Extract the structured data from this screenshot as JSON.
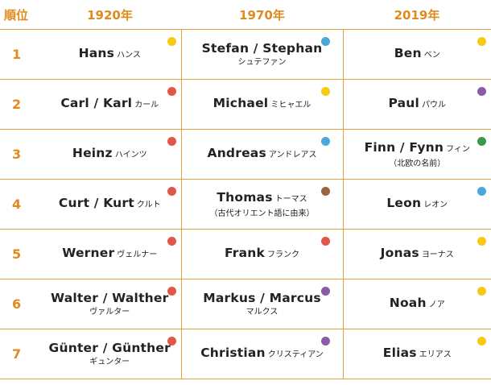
{
  "colors": {
    "accent": "#e08a1e",
    "dot_yellow": "#f6c913",
    "dot_blue": "#4aa8dc",
    "dot_red": "#e0574a",
    "dot_purple": "#8b5aa8",
    "dot_green": "#3a9a4a",
    "dot_brown": "#9a6440"
  },
  "header": {
    "rank": "順位",
    "col1": "1920年",
    "col2": "1970年",
    "col3": "2019年"
  },
  "rows": [
    {
      "rank": "1",
      "c1": {
        "name": "Hans",
        "kana": "ハンス",
        "kana_sub": "",
        "dot": "#f6c913"
      },
      "c2": {
        "name": "Stefan / Stephan",
        "kana": "",
        "kana_sub": "シュテファン",
        "dot": "#4aa8dc"
      },
      "c3": {
        "name": "Ben",
        "kana": "ベン",
        "kana_sub": "",
        "dot": "#f6c913"
      }
    },
    {
      "rank": "2",
      "c1": {
        "name": "Carl / Karl",
        "kana": "カール",
        "kana_sub": "",
        "dot": "#e0574a"
      },
      "c2": {
        "name": "Michael",
        "kana": "ミヒャエル",
        "kana_sub": "",
        "dot": "#f6c913"
      },
      "c3": {
        "name": "Paul",
        "kana": "パウル",
        "kana_sub": "",
        "dot": "#8b5aa8"
      }
    },
    {
      "rank": "3",
      "c1": {
        "name": "Heinz",
        "kana": "ハインツ",
        "kana_sub": "",
        "dot": "#e0574a"
      },
      "c2": {
        "name": "Andreas",
        "kana": "アンドレアス",
        "kana_sub": "",
        "dot": "#4aa8dc"
      },
      "c3": {
        "name": "Finn / Fynn",
        "kana": "フィン",
        "kana_sub": "（北欧の名前）",
        "dot": "#3a9a4a"
      }
    },
    {
      "rank": "4",
      "c1": {
        "name": "Curt / Kurt",
        "kana": "クルト",
        "kana_sub": "",
        "dot": "#e0574a"
      },
      "c2": {
        "name": "Thomas",
        "kana": "トーマス",
        "kana_sub": "（古代オリエント語に由来）",
        "dot": "#9a6440"
      },
      "c3": {
        "name": "Leon",
        "kana": "レオン",
        "kana_sub": "",
        "dot": "#4aa8dc"
      }
    },
    {
      "rank": "5",
      "c1": {
        "name": "Werner",
        "kana": "ヴェルナー",
        "kana_sub": "",
        "dot": "#e0574a"
      },
      "c2": {
        "name": "Frank",
        "kana": "フランク",
        "kana_sub": "",
        "dot": "#e0574a"
      },
      "c3": {
        "name": "Jonas",
        "kana": "ヨーナス",
        "kana_sub": "",
        "dot": "#f6c913"
      }
    },
    {
      "rank": "6",
      "c1": {
        "name": "Walter / Walther",
        "kana": "",
        "kana_sub": "ヴァルター",
        "dot": "#e0574a"
      },
      "c2": {
        "name": "Markus / Marcus",
        "kana": "",
        "kana_sub": "マルクス",
        "dot": "#8b5aa8"
      },
      "c3": {
        "name": "Noah",
        "kana": "ノア",
        "kana_sub": "",
        "dot": "#f6c913"
      }
    },
    {
      "rank": "7",
      "c1": {
        "name": "Günter / Günther",
        "kana": "",
        "kana_sub": "ギュンター",
        "dot": "#e0574a"
      },
      "c2": {
        "name": "Christian",
        "kana": "クリスティアン",
        "kana_sub": "",
        "dot": "#8b5aa8"
      },
      "c3": {
        "name": "Elias",
        "kana": "エリアス",
        "kana_sub": "",
        "dot": "#f6c913"
      }
    }
  ]
}
